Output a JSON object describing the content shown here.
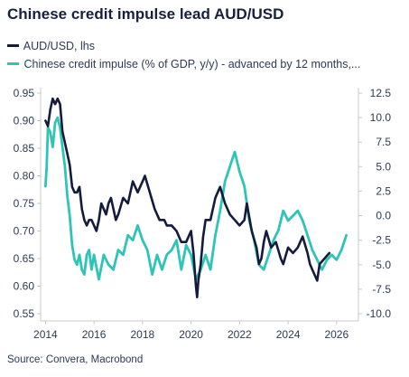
{
  "title": "Chinese credit impulse lead AUD/USD",
  "colors": {
    "aud": "#141b3d",
    "impulse": "#2ec4b6",
    "axis": "#c8c8c8"
  },
  "source": "Source: Convera, Macrobond",
  "chart_data": {
    "type": "line",
    "title": "Chinese credit impulse lead AUD/USD",
    "x_range": [
      2013.8,
      2026.9
    ],
    "x_ticks": [
      "2014",
      "2016",
      "2018",
      "2020",
      "2022",
      "2024",
      "2026"
    ],
    "y_left": {
      "label": "",
      "range": [
        0.55,
        0.95
      ],
      "ticks": [
        "0.55",
        "0.60",
        "0.65",
        "0.70",
        "0.75",
        "0.80",
        "0.85",
        "0.90",
        "0.95"
      ]
    },
    "y_right": {
      "label": "",
      "range": [
        -10.0,
        12.5
      ],
      "ticks": [
        "-10.0",
        "-7.5",
        "-5.0",
        "-2.5",
        "0.0",
        "2.5",
        "5.0",
        "7.5",
        "10.0",
        "12.5"
      ]
    },
    "grid": false,
    "legend_position": "top-left",
    "series": [
      {
        "name": "AUD/USD, lhs",
        "axis": "left",
        "x": [
          2014.0,
          2014.1,
          2014.2,
          2014.3,
          2014.4,
          2014.5,
          2014.6,
          2014.7,
          2014.8,
          2014.9,
          2015.0,
          2015.1,
          2015.2,
          2015.3,
          2015.4,
          2015.5,
          2015.6,
          2015.7,
          2015.8,
          2015.9,
          2016.0,
          2016.1,
          2016.2,
          2016.3,
          2016.4,
          2016.5,
          2016.6,
          2016.7,
          2016.8,
          2016.9,
          2017.0,
          2017.2,
          2017.4,
          2017.6,
          2017.8,
          2018.0,
          2018.1,
          2018.3,
          2018.5,
          2018.7,
          2018.9,
          2019.0,
          2019.2,
          2019.4,
          2019.6,
          2019.8,
          2020.0,
          2020.1,
          2020.2,
          2020.25,
          2020.3,
          2020.4,
          2020.5,
          2020.6,
          2020.8,
          2021.0,
          2021.2,
          2021.4,
          2021.6,
          2021.8,
          2022.0,
          2022.2,
          2022.3,
          2022.5,
          2022.7,
          2022.8,
          2022.9,
          2023.0,
          2023.1,
          2023.3,
          2023.5,
          2023.7,
          2023.8,
          2024.0,
          2024.2,
          2024.4,
          2024.6,
          2024.8,
          2024.9,
          2025.0,
          2025.2,
          2025.3,
          2025.5,
          2025.7
        ],
        "values": [
          0.9,
          0.89,
          0.92,
          0.94,
          0.93,
          0.94,
          0.93,
          0.88,
          0.86,
          0.84,
          0.82,
          0.78,
          0.77,
          0.77,
          0.78,
          0.74,
          0.72,
          0.71,
          0.72,
          0.72,
          0.71,
          0.7,
          0.72,
          0.75,
          0.74,
          0.73,
          0.75,
          0.76,
          0.74,
          0.72,
          0.73,
          0.76,
          0.75,
          0.79,
          0.77,
          0.79,
          0.8,
          0.77,
          0.74,
          0.72,
          0.72,
          0.71,
          0.71,
          0.7,
          0.68,
          0.68,
          0.7,
          0.66,
          0.6,
          0.58,
          0.61,
          0.64,
          0.69,
          0.72,
          0.72,
          0.76,
          0.78,
          0.75,
          0.73,
          0.72,
          0.71,
          0.72,
          0.75,
          0.7,
          0.67,
          0.64,
          0.65,
          0.68,
          0.7,
          0.67,
          0.68,
          0.65,
          0.64,
          0.67,
          0.66,
          0.67,
          0.69,
          0.66,
          0.64,
          0.63,
          0.61,
          0.64,
          0.65,
          0.66
        ]
      },
      {
        "name": "Chinese credit impulse (% of GDP, y/y) - advanced by 12 months,...",
        "axis": "right",
        "x": [
          2014.0,
          2014.05,
          2014.1,
          2014.2,
          2014.3,
          2014.4,
          2014.5,
          2014.6,
          2014.7,
          2014.8,
          2014.9,
          2015.0,
          2015.1,
          2015.2,
          2015.3,
          2015.4,
          2015.5,
          2015.6,
          2015.7,
          2015.8,
          2015.9,
          2016.0,
          2016.2,
          2016.4,
          2016.6,
          2016.8,
          2017.0,
          2017.2,
          2017.4,
          2017.6,
          2017.8,
          2018.0,
          2018.2,
          2018.4,
          2018.6,
          2018.8,
          2019.0,
          2019.2,
          2019.4,
          2019.6,
          2019.8,
          2020.0,
          2020.2,
          2020.4,
          2020.6,
          2020.8,
          2021.0,
          2021.2,
          2021.4,
          2021.6,
          2021.8,
          2022.0,
          2022.2,
          2022.4,
          2022.6,
          2022.8,
          2023.0,
          2023.2,
          2023.4,
          2023.6,
          2023.8,
          2024.0,
          2024.2,
          2024.4,
          2024.6,
          2024.8,
          2025.0,
          2025.2,
          2025.4,
          2025.6,
          2025.8,
          2026.0,
          2026.2,
          2026.4
        ],
        "values": [
          3.0,
          5.0,
          9.0,
          8.5,
          7.0,
          9.5,
          10.0,
          9.0,
          7.0,
          5.0,
          2.0,
          0.0,
          -3.0,
          -4.5,
          -5.0,
          -4.0,
          -5.5,
          -6.0,
          -4.0,
          -3.5,
          -5.5,
          -4.0,
          -6.5,
          -4.0,
          -5.0,
          -5.5,
          -3.5,
          -4.0,
          -2.0,
          -2.5,
          -1.0,
          -2.5,
          -3.5,
          -6.0,
          -4.0,
          -5.5,
          -4.0,
          -3.5,
          -2.5,
          -5.5,
          -3.0,
          -4.0,
          -6.5,
          -5.5,
          -4.0,
          -5.5,
          -2.0,
          0.5,
          3.5,
          5.0,
          6.5,
          4.5,
          3.0,
          -0.5,
          -2.5,
          -5.0,
          -5.5,
          -4.0,
          -2.5,
          -1.5,
          0.5,
          -0.5,
          0.0,
          0.5,
          -0.5,
          -2.0,
          -3.5,
          -4.5,
          -5.5,
          -4.5,
          -4.0,
          -4.5,
          -3.5,
          -2.0
        ]
      }
    ]
  }
}
